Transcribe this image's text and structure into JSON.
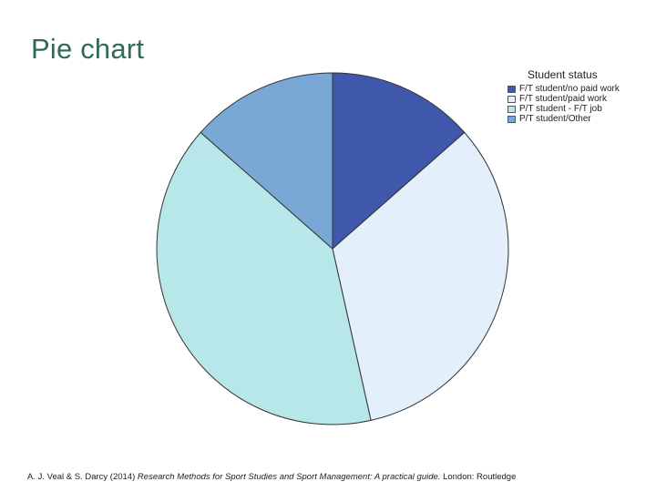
{
  "slide": {
    "title": "Pie chart"
  },
  "chart_data": {
    "type": "pie",
    "legend_title": "Student status",
    "legend_position": "right",
    "categories": [
      "F/T student/no paid work",
      "F/T student/paid work",
      "P/T student - F/T job",
      "P/T student/Other"
    ],
    "values": [
      13.5,
      33.0,
      40.0,
      13.5
    ],
    "colors": [
      "#3f58ab",
      "#e3effa",
      "#b7e7e8",
      "#7aa8d6"
    ]
  },
  "citation": {
    "authors": "A. J. Veal & S. Darcy (2014)",
    "book_title": "Research Methods for Sport Studies and Sport Management: A practical guide.",
    "publisher": "London: Routledge"
  }
}
